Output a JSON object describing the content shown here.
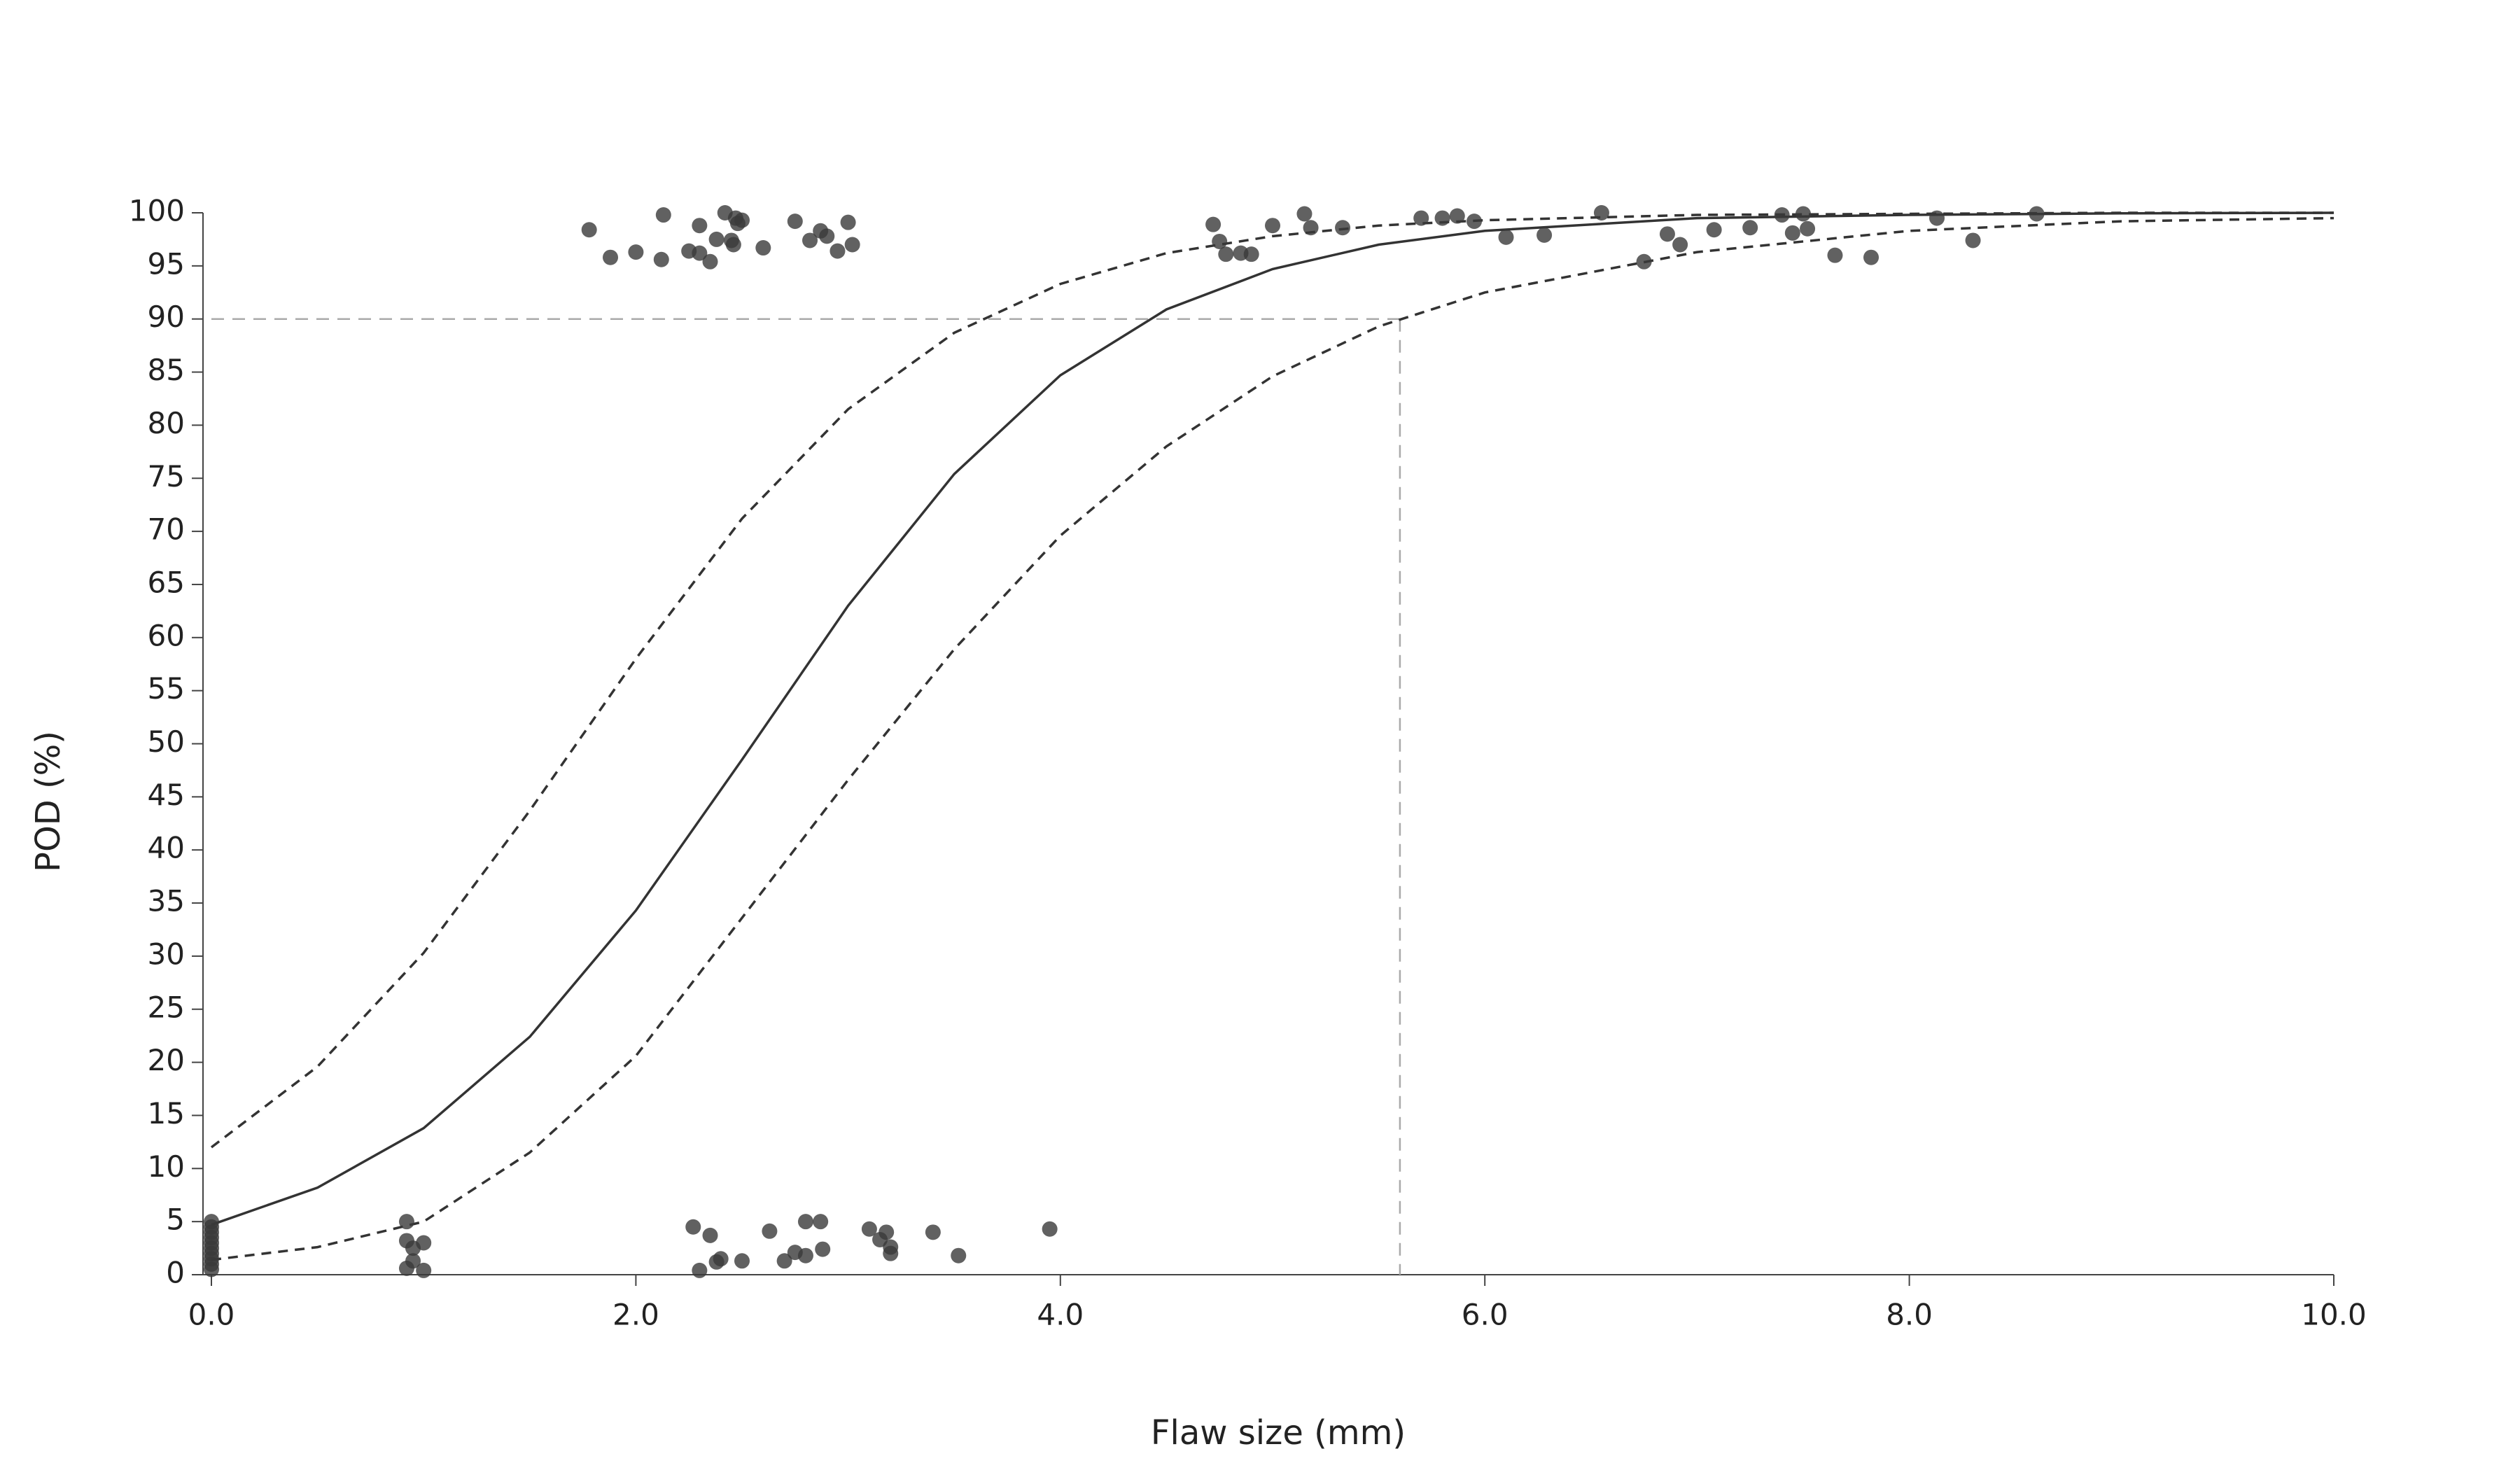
{
  "chart_data": {
    "type": "pod",
    "xlabel": "Flaw size (mm)",
    "ylabel": "POD (%)",
    "xlim": [
      0,
      10
    ],
    "ylim": [
      0,
      100
    ],
    "xticks": [
      {
        "value": 0,
        "label": "0.0"
      },
      {
        "value": 2,
        "label": "2.0"
      },
      {
        "value": 4,
        "label": "4.0"
      },
      {
        "value": 6,
        "label": "6.0"
      },
      {
        "value": 8,
        "label": "8.0"
      },
      {
        "value": 10,
        "label": "10.0"
      }
    ],
    "yticks": [
      0,
      5,
      10,
      15,
      20,
      25,
      30,
      35,
      40,
      45,
      50,
      55,
      60,
      65,
      70,
      75,
      80,
      85,
      90,
      95,
      100
    ],
    "curve_x": [
      0,
      0.5,
      1,
      1.5,
      2,
      2.5,
      3,
      3.5,
      4,
      4.5,
      5,
      5.5,
      6,
      7,
      8,
      9,
      10
    ],
    "curves": [
      {
        "dashed": false,
        "color": "#333333",
        "values": [
          4.7,
          8.2,
          13.8,
          22.4,
          34.3,
          48.5,
          63.0,
          75.4,
          84.7,
          90.9,
          94.7,
          97.0,
          98.3,
          99.5,
          99.8,
          99.95,
          100
        ]
      },
      {
        "dashed": true,
        "color": "#333333",
        "values": [
          12,
          19.6,
          30.3,
          43.7,
          58,
          71.2,
          81.5,
          88.7,
          93.3,
          96.2,
          97.8,
          98.8,
          99.3,
          99.8,
          99.9,
          100,
          100
        ]
      },
      {
        "dashed": true,
        "color": "#333333",
        "values": [
          1.4,
          2.6,
          5.0,
          11.5,
          20.6,
          33.6,
          46.6,
          58.9,
          69.6,
          78.0,
          84.6,
          89.3,
          92.5,
          96.3,
          98.3,
          99.2,
          99.5
        ]
      }
    ],
    "reference": {
      "x": 5.6,
      "y": 90,
      "color": "#aaaaaa"
    },
    "points": {
      "color": "#3a3a3a",
      "x": [
        0,
        0,
        0,
        0,
        0,
        0,
        0,
        0,
        0,
        0,
        0.92,
        0.92,
        0.95,
        1.0,
        0.95,
        0.92,
        1.0,
        2.27,
        2.35,
        2.38,
        2.4,
        2.3,
        2.5,
        2.63,
        2.7,
        2.75,
        2.8,
        2.8,
        2.87,
        2.88,
        3.1,
        3.15,
        3.18,
        3.2,
        3.2,
        3.4,
        3.52,
        3.95,
        1.78,
        1.88,
        2.0,
        2.12,
        2.13,
        2.25,
        2.3,
        2.3,
        2.35,
        2.38,
        2.42,
        2.45,
        2.46,
        2.47,
        2.5,
        2.48,
        2.6,
        2.75,
        2.82,
        2.87,
        2.9,
        2.95,
        3.0,
        3.02,
        4.72,
        4.75,
        4.78,
        4.85,
        4.9,
        5.0,
        5.15,
        5.18,
        5.33,
        5.7,
        5.8,
        5.87,
        5.95,
        6.1,
        6.28,
        6.55,
        6.75,
        6.86,
        6.92,
        7.08,
        7.25,
        7.4,
        7.45,
        7.5,
        7.52,
        7.65,
        7.82,
        8.13,
        8.3,
        8.6
      ],
      "y": [
        0.5,
        1,
        1.5,
        2,
        2.5,
        3,
        3.5,
        4,
        4.5,
        5,
        5,
        3.2,
        2.5,
        3,
        1.3,
        0.6,
        0.4,
        4.5,
        3.7,
        1.2,
        1.5,
        0.4,
        1.3,
        4.1,
        1.3,
        2.1,
        1.8,
        5,
        5,
        2.4,
        4.3,
        3.3,
        4,
        2.6,
        2,
        4,
        1.8,
        4.3,
        98.4,
        95.8,
        96.3,
        95.6,
        99.8,
        96.4,
        96.2,
        98.8,
        95.4,
        97.5,
        100,
        97.4,
        97,
        99.5,
        99.3,
        99,
        96.7,
        99.2,
        97.4,
        98.3,
        97.8,
        96.4,
        99.1,
        97,
        98.9,
        97.3,
        96.1,
        96.2,
        96.1,
        98.8,
        99.9,
        98.6,
        98.6,
        99.5,
        99.5,
        99.7,
        99.2,
        97.7,
        97.9,
        100,
        95.4,
        98,
        97,
        98.4,
        98.6,
        99.8,
        98.1,
        99.9,
        98.5,
        96,
        95.8,
        99.5,
        97.4,
        99.9
      ]
    }
  }
}
